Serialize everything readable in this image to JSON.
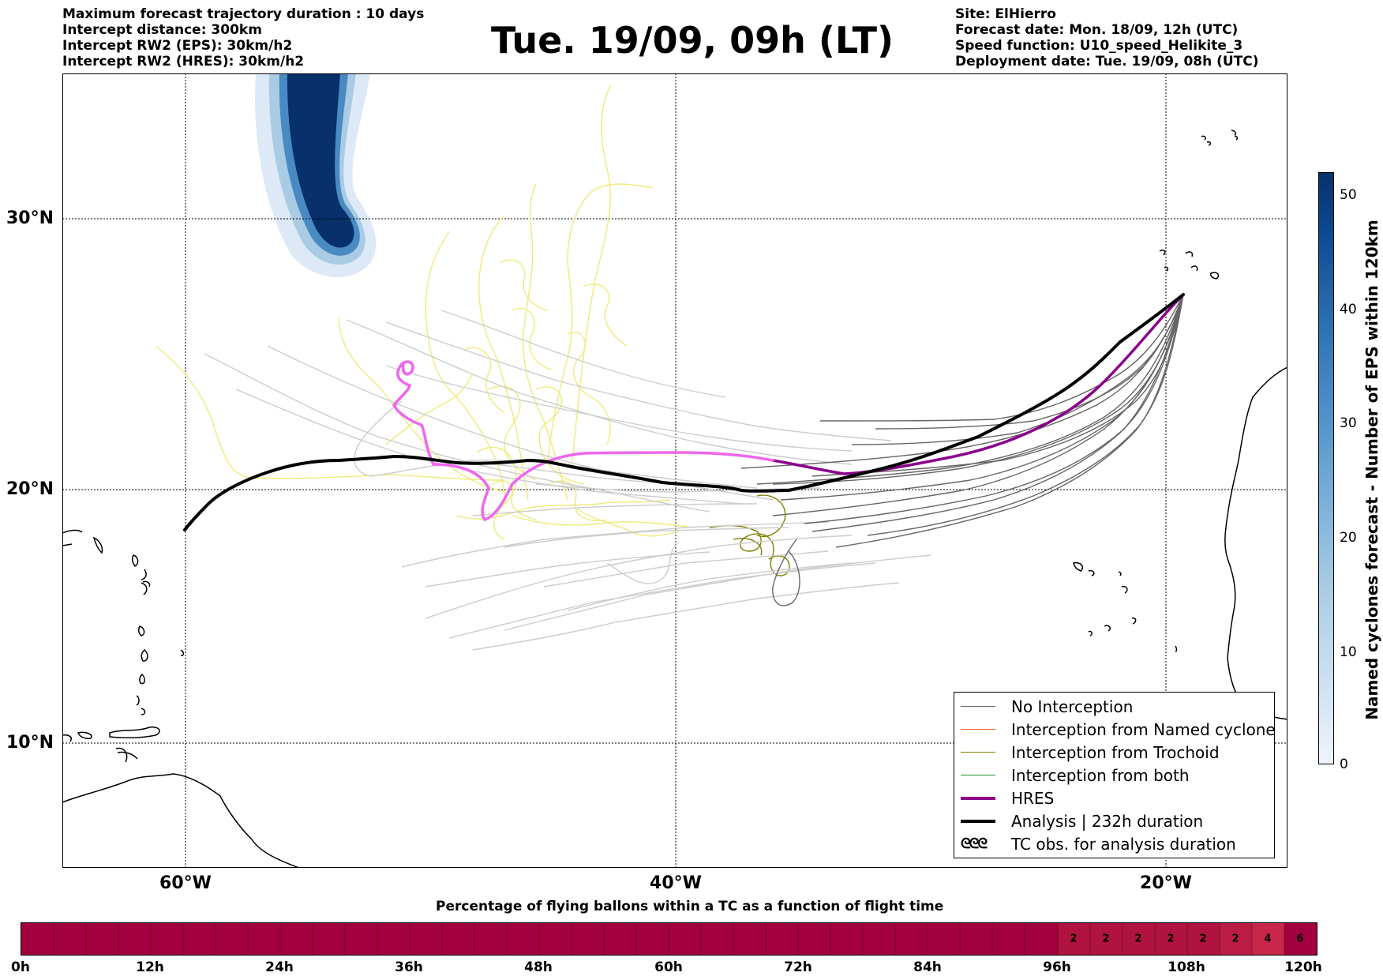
{
  "header": {
    "left": [
      "Maximum forecast trajectory duration : 10 days",
      "Intercept distance: 300km",
      "Intercept RW2 (EPS):  30km/h2",
      "Intercept RW2 (HRES): 30km/h2"
    ],
    "title": "Tue. 19/09, 09h (LT)",
    "right": [
      "Site: ElHierro",
      "Forecast date: Mon. 18/09, 12h (UTC)",
      "Speed function: U10_speed_Helikite_3",
      "Deployment date: Tue. 19/09, 08h (UTC)"
    ]
  },
  "map": {
    "lat_labels": [
      "30°N",
      "20°N",
      "10°N"
    ],
    "lon_labels": [
      "60°W",
      "40°W",
      "20°W"
    ],
    "colors": {
      "no_interception": "#666666",
      "named_cyclone": "#ff5522",
      "trochoid": "#808000",
      "both": "#228b22",
      "hres": "#8b008b",
      "hres_early": "#ee66ee",
      "analysis": "#000000",
      "eps_light": "#cccccc",
      "eps_yellow": "#eeea7a"
    }
  },
  "legend": {
    "items": [
      "No Interception",
      "Interception from Named cyclone",
      "Interception from Trochoid",
      "Interception from both",
      "HRES",
      "Analysis | 232h duration",
      "TC obs. for analysis duration"
    ],
    "tc_symbol": "ᘓᘓᘓ"
  },
  "colorbar": {
    "label": "Named cyclones forecast - Number of EPS within 120km",
    "ticks": [
      "50",
      "40",
      "30",
      "20",
      "10",
      "0"
    ],
    "max": 52
  },
  "bottom": {
    "title": "Percentage of flying ballons within a TC as a function of flight time",
    "ticks": [
      "0h",
      "12h",
      "24h",
      "36h",
      "48h",
      "60h",
      "72h",
      "84h",
      "96h",
      "108h",
      "120h"
    ],
    "values": [
      "2",
      "2",
      "2",
      "2",
      "2",
      "2",
      "4",
      "6"
    ]
  }
}
